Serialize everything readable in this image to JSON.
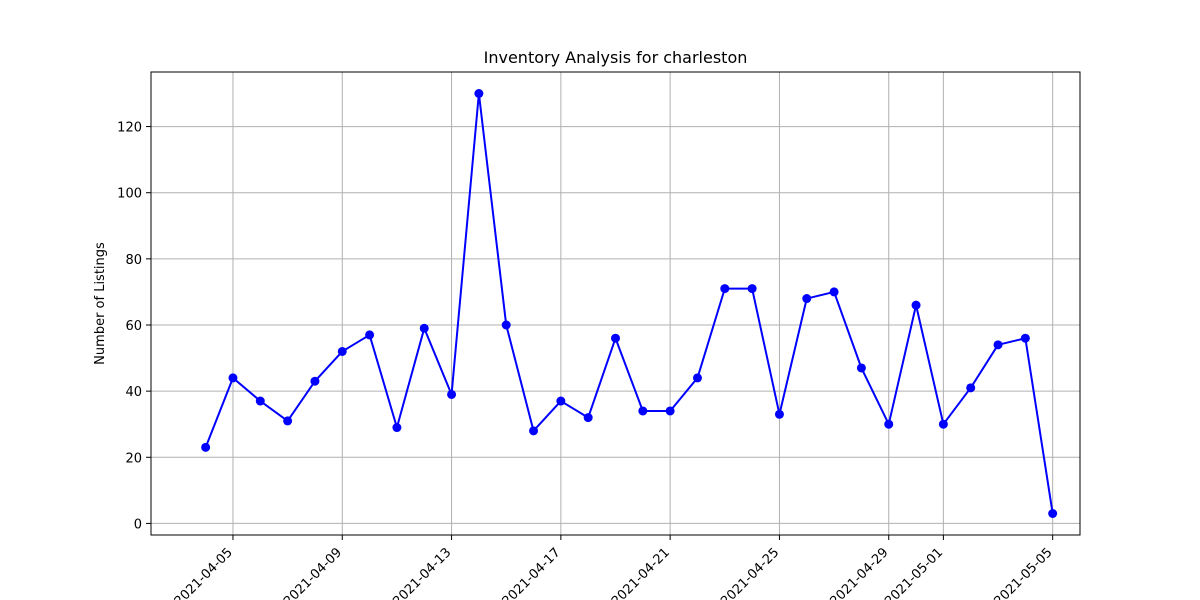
{
  "chart_data": {
    "type": "line",
    "title": "Inventory Analysis for charleston",
    "xlabel": "",
    "ylabel": "Number of Listings",
    "grid": true,
    "x_ticks": [
      "2021-04-05",
      "2021-04-09",
      "2021-04-13",
      "2021-04-17",
      "2021-04-21",
      "2021-04-25",
      "2021-04-29",
      "2021-05-01",
      "2021-05-05"
    ],
    "y_ticks": [
      0,
      20,
      40,
      60,
      80,
      100,
      120
    ],
    "xlim": [
      "2021-04-02",
      "2021-05-06"
    ],
    "ylim": [
      -3.5,
      136.5
    ],
    "line_color": "#0000ff",
    "marker": "circle",
    "series": [
      {
        "points": [
          {
            "x": "2021-04-04",
            "y": 23
          },
          {
            "x": "2021-04-05",
            "y": 44
          },
          {
            "x": "2021-04-06",
            "y": 37
          },
          {
            "x": "2021-04-07",
            "y": 31
          },
          {
            "x": "2021-04-08",
            "y": 43
          },
          {
            "x": "2021-04-09",
            "y": 52
          },
          {
            "x": "2021-04-10",
            "y": 57
          },
          {
            "x": "2021-04-11",
            "y": 29
          },
          {
            "x": "2021-04-12",
            "y": 59
          },
          {
            "x": "2021-04-13",
            "y": 39
          },
          {
            "x": "2021-04-14",
            "y": 130
          },
          {
            "x": "2021-04-15",
            "y": 60
          },
          {
            "x": "2021-04-16",
            "y": 28
          },
          {
            "x": "2021-04-17",
            "y": 37
          },
          {
            "x": "2021-04-18",
            "y": 32
          },
          {
            "x": "2021-04-19",
            "y": 56
          },
          {
            "x": "2021-04-20",
            "y": 34
          },
          {
            "x": "2021-04-21",
            "y": 34
          },
          {
            "x": "2021-04-22",
            "y": 44
          },
          {
            "x": "2021-04-23",
            "y": 71
          },
          {
            "x": "2021-04-24",
            "y": 71
          },
          {
            "x": "2021-04-25",
            "y": 33
          },
          {
            "x": "2021-04-26",
            "y": 68
          },
          {
            "x": "2021-04-27",
            "y": 70
          },
          {
            "x": "2021-04-28",
            "y": 47
          },
          {
            "x": "2021-04-29",
            "y": 30
          },
          {
            "x": "2021-04-30",
            "y": 66
          },
          {
            "x": "2021-05-01",
            "y": 30
          },
          {
            "x": "2021-05-02",
            "y": 41
          },
          {
            "x": "2021-05-03",
            "y": 54
          },
          {
            "x": "2021-05-04",
            "y": 56
          },
          {
            "x": "2021-05-05",
            "y": 3
          }
        ]
      }
    ]
  }
}
